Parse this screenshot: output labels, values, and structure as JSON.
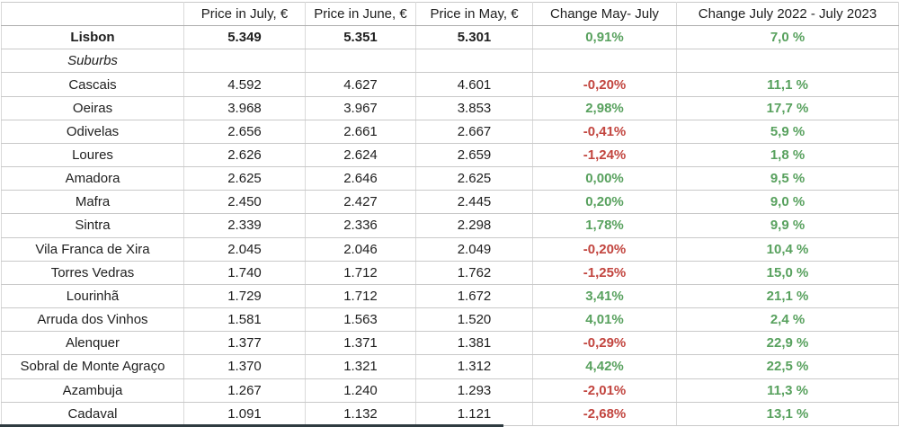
{
  "colors": {
    "positive": "#58a15e",
    "negative": "#c2453f",
    "grid_vertical": "#dadada",
    "grid_horizontal": "#c9c9c9",
    "header_underline": "#aeaeae",
    "text": "#1f1f1f",
    "bottom_edge": "#2f3b40"
  },
  "table": {
    "header": [
      "",
      "Price in July, €",
      "Price in June, €",
      "Price in May, €",
      "Change May- July",
      "Change July 2022 - July 2023"
    ],
    "column_keys": [
      "name",
      "price_july",
      "price_june",
      "price_may",
      "change_may_july",
      "change_yoy"
    ],
    "rows": [
      {
        "name": "Lisbon",
        "emphasis": "bold",
        "price_july": "5.349",
        "price_june": "5.351",
        "price_may": "5.301",
        "change_may_july": "0,91%",
        "change_yoy": "7,0 %"
      },
      {
        "name": "Suburbs",
        "emphasis": "italic",
        "price_july": "",
        "price_june": "",
        "price_may": "",
        "change_may_july": "",
        "change_yoy": ""
      },
      {
        "name": "Cascais",
        "emphasis": "",
        "price_july": "4.592",
        "price_june": "4.627",
        "price_may": "4.601",
        "change_may_july": "-0,20%",
        "change_yoy": "11,1 %"
      },
      {
        "name": "Oeiras",
        "emphasis": "",
        "price_july": "3.968",
        "price_june": "3.967",
        "price_may": "3.853",
        "change_may_july": "2,98%",
        "change_yoy": "17,7 %"
      },
      {
        "name": "Odivelas",
        "emphasis": "",
        "price_july": "2.656",
        "price_june": "2.661",
        "price_may": "2.667",
        "change_may_july": "-0,41%",
        "change_yoy": "5,9 %"
      },
      {
        "name": "Loures",
        "emphasis": "",
        "price_july": "2.626",
        "price_june": "2.624",
        "price_may": "2.659",
        "change_may_july": "-1,24%",
        "change_yoy": "1,8 %"
      },
      {
        "name": "Amadora",
        "emphasis": "",
        "price_july": "2.625",
        "price_june": "2.646",
        "price_may": "2.625",
        "change_may_july": "0,00%",
        "change_yoy": "9,5 %"
      },
      {
        "name": "Mafra",
        "emphasis": "",
        "price_july": "2.450",
        "price_june": "2.427",
        "price_may": "2.445",
        "change_may_july": "0,20%",
        "change_yoy": "9,0 %"
      },
      {
        "name": "Sintra",
        "emphasis": "",
        "price_july": "2.339",
        "price_june": "2.336",
        "price_may": "2.298",
        "change_may_july": "1,78%",
        "change_yoy": "9,9 %"
      },
      {
        "name": "Vila Franca de Xira",
        "emphasis": "",
        "price_july": "2.045",
        "price_june": "2.046",
        "price_may": "2.049",
        "change_may_july": "-0,20%",
        "change_yoy": "10,4 %"
      },
      {
        "name": "Torres Vedras",
        "emphasis": "",
        "price_july": "1.740",
        "price_june": "1.712",
        "price_may": "1.762",
        "change_may_july": "-1,25%",
        "change_yoy": "15,0 %"
      },
      {
        "name": "Lourinhã",
        "emphasis": "",
        "price_july": "1.729",
        "price_june": "1.712",
        "price_may": "1.672",
        "change_may_july": "3,41%",
        "change_yoy": "21,1 %"
      },
      {
        "name": "Arruda dos Vinhos",
        "emphasis": "",
        "price_july": "1.581",
        "price_june": "1.563",
        "price_may": "1.520",
        "change_may_july": "4,01%",
        "change_yoy": "2,4 %"
      },
      {
        "name": "Alenquer",
        "emphasis": "",
        "price_july": "1.377",
        "price_june": "1.371",
        "price_may": "1.381",
        "change_may_july": "-0,29%",
        "change_yoy": "22,9 %"
      },
      {
        "name": "Sobral de Monte Agraço",
        "emphasis": "",
        "price_july": "1.370",
        "price_june": "1.321",
        "price_may": "1.312",
        "change_may_july": "4,42%",
        "change_yoy": "22,5 %"
      },
      {
        "name": "Azambuja",
        "emphasis": "",
        "price_july": "1.267",
        "price_june": "1.240",
        "price_may": "1.293",
        "change_may_july": "-2,01%",
        "change_yoy": "11,3 %"
      },
      {
        "name": "Cadaval",
        "emphasis": "",
        "price_july": "1.091",
        "price_june": "1.132",
        "price_may": "1.121",
        "change_may_july": "-2,68%",
        "change_yoy": "13,1 %"
      }
    ]
  }
}
